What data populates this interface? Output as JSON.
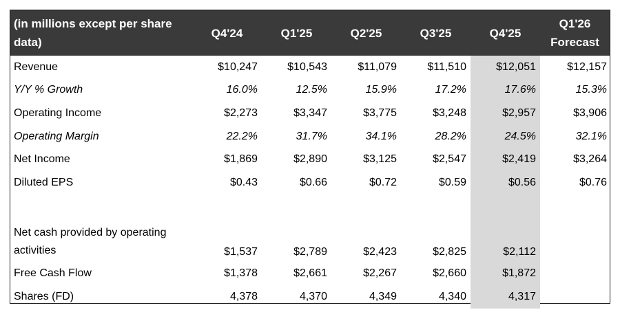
{
  "header": {
    "label": "(in millions except per share data)",
    "columns": [
      "Q4'24",
      "Q1'25",
      "Q2'25",
      "Q3'25",
      "Q4'25",
      "Q1'26 Forecast"
    ]
  },
  "rows": [
    {
      "label": "Revenue",
      "italic": false,
      "values": [
        "$10,247",
        "$10,543",
        "$11,079",
        "$11,510",
        "$12,051",
        "$12,157"
      ]
    },
    {
      "label": "Y/Y % Growth",
      "italic": true,
      "values": [
        "16.0%",
        "12.5%",
        "15.9%",
        "17.2%",
        "17.6%",
        "15.3%"
      ]
    },
    {
      "label": "Operating Income",
      "italic": false,
      "values": [
        "$2,273",
        "$3,347",
        "$3,775",
        "$3,248",
        "$2,957",
        "$3,906"
      ]
    },
    {
      "label": "Operating Margin",
      "italic": true,
      "values": [
        "22.2%",
        "31.7%",
        "34.1%",
        "28.2%",
        "24.5%",
        "32.1%"
      ]
    },
    {
      "label": "Net Income",
      "italic": false,
      "values": [
        "$1,869",
        "$2,890",
        "$3,125",
        "$2,547",
        "$2,419",
        "$3,264"
      ]
    },
    {
      "label": "Diluted EPS",
      "italic": false,
      "values": [
        "$0.43",
        "$0.66",
        "$0.72",
        "$0.59",
        "$0.56",
        "$0.76"
      ]
    },
    {
      "label": "Net cash provided by operating activities",
      "italic": false,
      "values": [
        "$1,537",
        "$2,789",
        "$2,423",
        "$2,825",
        "$2,112",
        ""
      ]
    },
    {
      "label": "Free Cash Flow",
      "italic": false,
      "values": [
        "$1,378",
        "$2,661",
        "$2,267",
        "$2,660",
        "$1,872",
        ""
      ]
    },
    {
      "label": "Shares (FD)",
      "italic": false,
      "values": [
        "4,378",
        "4,370",
        "4,349",
        "4,340",
        "4,317",
        ""
      ]
    }
  ],
  "colors": {
    "header_bg": "#3a3a3a",
    "header_text": "#ffffff",
    "highlight_column": "#d9d9d9",
    "border": "#1a1a1a"
  }
}
